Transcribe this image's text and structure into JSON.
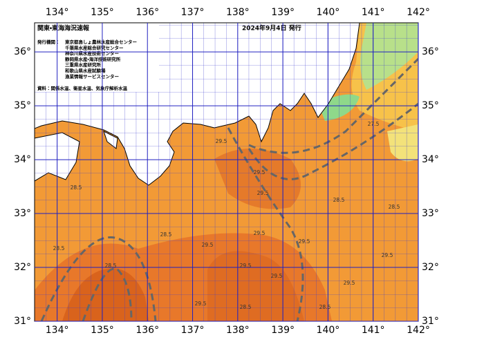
{
  "header": {
    "title": "関東・東海海況速報",
    "date": "2024年9月4日 発行"
  },
  "issuers": {
    "label": "発行機関：",
    "names": [
      "東京都島しょ農林水産総合センター",
      "千葉県水産総合研究センター",
      "神奈川県水産技術センター",
      "静岡県水産・海洋技術研究所",
      "三重県水産研究所",
      "和歌山県水産試験場",
      "漁業情報サービスセンター"
    ]
  },
  "source": "資料：関係水温、衛星水温、気象庁解析水温",
  "map": {
    "lonlim": [
      133.5,
      142
    ],
    "latlim": [
      31,
      36.54
    ],
    "lon_ticks": [
      {
        "value": 134,
        "label": "134°"
      },
      {
        "value": 135,
        "label": "135°"
      },
      {
        "value": 136,
        "label": "136°"
      },
      {
        "value": 137,
        "label": "137°"
      },
      {
        "value": 138,
        "label": "138°"
      },
      {
        "value": 139,
        "label": "139°"
      },
      {
        "value": 140,
        "label": "140°"
      },
      {
        "value": 141,
        "label": "141°"
      },
      {
        "value": 142,
        "label": "142°"
      }
    ],
    "lat_ticks": [
      {
        "value": 31,
        "label": "31°"
      },
      {
        "value": 32,
        "label": "32°"
      },
      {
        "value": 33,
        "label": "33°"
      },
      {
        "value": 34,
        "label": "34°"
      },
      {
        "value": 35,
        "label": "35°"
      },
      {
        "value": 36,
        "label": "36°"
      }
    ],
    "isotherm_labels": [
      28.5,
      29.5,
      29.5,
      29.5,
      28.5,
      29.5,
      29.5,
      29.5,
      29.5,
      28.5,
      29.5,
      29.5,
      28.5,
      28.5,
      29.5,
      28.5,
      28.5,
      29.5,
      28.5,
      27.5
    ]
  }
}
